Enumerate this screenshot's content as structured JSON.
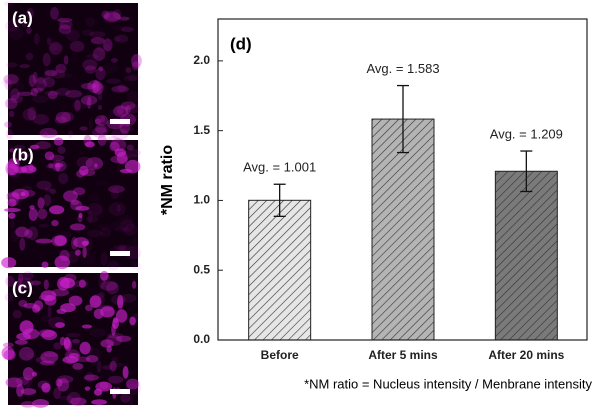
{
  "chart_data": {
    "type": "bar",
    "panel_labels": [
      "(a)",
      "(b)",
      "(c)"
    ],
    "chart_label": "(d)",
    "ylabel": "*NM ratio",
    "footnote": "*NM ratio = Nucleus intensity / Menbrane intensity",
    "categories": [
      "Before",
      "After 5 mins",
      "After 20 mins"
    ],
    "values": [
      1.001,
      1.583,
      1.209
    ],
    "value_labels": [
      "Avg. = 1.001",
      "Avg. = 1.583",
      "Avg. = 1.209"
    ],
    "errors": [
      0.115,
      0.24,
      0.145
    ],
    "colors": [
      "#e6e6e6",
      "#b4b4b4",
      "#7a7a7a"
    ],
    "ylim": [
      0,
      2.3
    ],
    "yticks": [
      {
        "value": 0,
        "label": "0.0"
      },
      {
        "value": 0.5,
        "label": "0.5"
      },
      {
        "value": 1,
        "label": "1.0"
      },
      {
        "value": 1.5,
        "label": "1.5"
      },
      {
        "value": 2,
        "label": "2.0"
      }
    ]
  }
}
